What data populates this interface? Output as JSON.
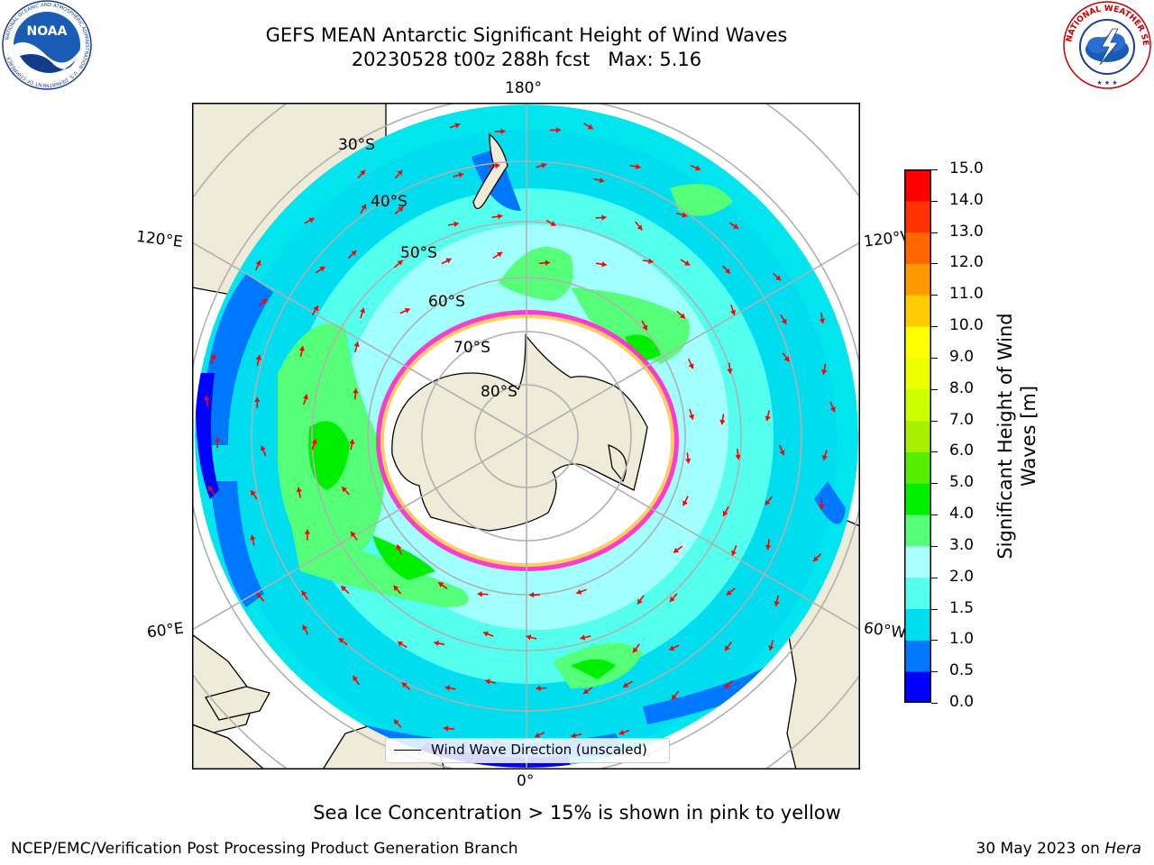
{
  "header": {
    "title_line1": "GEFS MEAN Antarctic Significant Height of Wind Waves",
    "title_line2": "20230528 t00z 288h fcst   Max: 5.16"
  },
  "logos": {
    "noaa_text": "NOAA",
    "noaa_ring_text": "NATIONAL OCEANIC AND ATMOSPHERIC ADMINISTRATION · U.S. DEPARTMENT OF COMMERCE ·",
    "nws_ring_text": "NATIONAL WEATHER SERVICE"
  },
  "map": {
    "projection": "south-polar-stereographic",
    "longitude_labels": {
      "top": "180°",
      "bottom": "0°",
      "left_upper": "120°E",
      "left_lower": "60°E",
      "right_upper": "120°W",
      "right_lower": "60°W"
    },
    "latitude_labels": [
      "30°S",
      "40°S",
      "50°S",
      "60°S",
      "70°S",
      "80°S"
    ],
    "legend_label": "Wind Wave Direction (unscaled)",
    "colors": {
      "land": "#efebd9",
      "ice_edge": "#ff33cc",
      "arrow": "#ff0000",
      "graticule": "#b0b0b0"
    }
  },
  "colorbar": {
    "title_line1": "Significant Height of Wind",
    "title_line2": "Waves [m]",
    "ticks": [
      "0.0",
      "0.5",
      "1.0",
      "1.5",
      "2.0",
      "3.0",
      "4.0",
      "5.0",
      "6.0",
      "7.0",
      "8.0",
      "9.0",
      "10.0",
      "11.0",
      "12.0",
      "13.0",
      "14.0",
      "15.0"
    ],
    "colors": [
      "#0000ff",
      "#0077ff",
      "#00ddee",
      "#55ffee",
      "#aaffff",
      "#55ff77",
      "#00ee00",
      "#55ee00",
      "#aaee00",
      "#ccff00",
      "#eeff00",
      "#ffff00",
      "#ffcc00",
      "#ff9900",
      "#ff6600",
      "#ff3300",
      "#ff0000"
    ]
  },
  "notes": {
    "ice": "Sea Ice Concentration > 15% is shown in pink to yellow"
  },
  "footer": {
    "left": "NCEP/EMC/Verification Post Processing Product Generation Branch",
    "date": "30 May 2023 on",
    "machine": "Hera"
  }
}
